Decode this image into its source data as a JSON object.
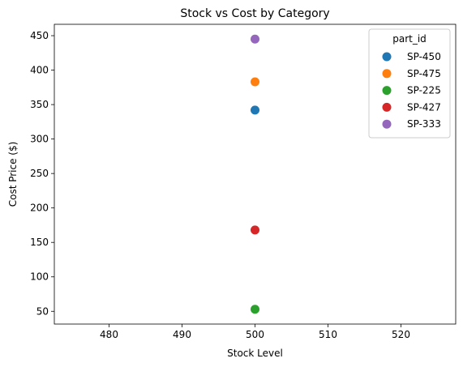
{
  "chart_data": {
    "type": "scatter",
    "title": "Stock vs Cost by Category",
    "xlabel": "Stock Level",
    "ylabel": "Cost Price ($)",
    "xlim": [
      472.5,
      527.5
    ],
    "ylim": [
      31.5,
      466.5
    ],
    "xticks": [
      480,
      490,
      500,
      510,
      520
    ],
    "yticks": [
      50,
      100,
      150,
      200,
      250,
      300,
      350,
      400,
      450
    ],
    "grid": false,
    "legend": {
      "title": "part_id",
      "placement": "top-right"
    },
    "series": [
      {
        "name": "SP-450",
        "color": "#1f77b4",
        "x": [
          500
        ],
        "y": [
          342
        ]
      },
      {
        "name": "SP-475",
        "color": "#ff7f0e",
        "x": [
          500
        ],
        "y": [
          383
        ]
      },
      {
        "name": "SP-225",
        "color": "#2ca02c",
        "x": [
          500
        ],
        "y": [
          53
        ]
      },
      {
        "name": "SP-427",
        "color": "#d62728",
        "x": [
          500
        ],
        "y": [
          168
        ]
      },
      {
        "name": "SP-333",
        "color": "#9467bd",
        "x": [
          500
        ],
        "y": [
          445
        ]
      }
    ]
  }
}
